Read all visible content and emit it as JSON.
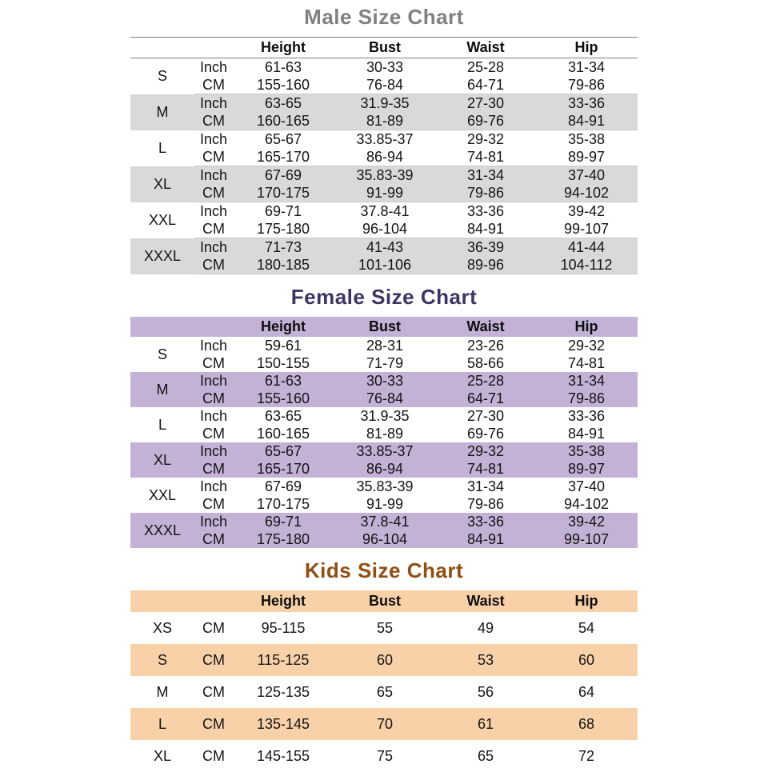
{
  "page": {
    "background": "#ffffff"
  },
  "charts": [
    {
      "title": "Male Size Chart",
      "title_color": "#808080",
      "band_color": "#d9d9d9",
      "header_shaded": false,
      "columns": [
        "Height",
        "Bust",
        "Waist",
        "Hip"
      ],
      "rows": [
        {
          "size": "S",
          "shaded": false,
          "measures": [
            {
              "unit": "Inch",
              "values": [
                "61-63",
                "30-33",
                "25-28",
                "31-34"
              ]
            },
            {
              "unit": "CM",
              "values": [
                "155-160",
                "76-84",
                "64-71",
                "79-86"
              ]
            }
          ]
        },
        {
          "size": "M",
          "shaded": true,
          "measures": [
            {
              "unit": "Inch",
              "values": [
                "63-65",
                "31.9-35",
                "27-30",
                "33-36"
              ]
            },
            {
              "unit": "CM",
              "values": [
                "160-165",
                "81-89",
                "69-76",
                "84-91"
              ]
            }
          ]
        },
        {
          "size": "L",
          "shaded": false,
          "measures": [
            {
              "unit": "Inch",
              "values": [
                "65-67",
                "33.85-37",
                "29-32",
                "35-38"
              ]
            },
            {
              "unit": "CM",
              "values": [
                "165-170",
                "86-94",
                "74-81",
                "89-97"
              ]
            }
          ]
        },
        {
          "size": "XL",
          "shaded": true,
          "measures": [
            {
              "unit": "Inch",
              "values": [
                "67-69",
                "35.83-39",
                "31-34",
                "37-40"
              ]
            },
            {
              "unit": "CM",
              "values": [
                "170-175",
                "91-99",
                "79-86",
                "94-102"
              ]
            }
          ]
        },
        {
          "size": "XXL",
          "shaded": false,
          "measures": [
            {
              "unit": "Inch",
              "values": [
                "69-71",
                "37.8-41",
                "33-36",
                "39-42"
              ]
            },
            {
              "unit": "CM",
              "values": [
                "175-180",
                "96-104",
                "84-91",
                "99-107"
              ]
            }
          ]
        },
        {
          "size": "XXXL",
          "shaded": true,
          "measures": [
            {
              "unit": "Inch",
              "values": [
                "71-73",
                "41-43",
                "36-39",
                "41-44"
              ]
            },
            {
              "unit": "CM",
              "values": [
                "180-185",
                "101-106",
                "89-96",
                "104-112"
              ]
            }
          ]
        }
      ]
    },
    {
      "title": "Female Size Chart",
      "title_color": "#3e3363",
      "band_color": "#c3b1d6",
      "header_shaded": true,
      "columns": [
        "Height",
        "Bust",
        "Waist",
        "Hip"
      ],
      "rows": [
        {
          "size": "S",
          "shaded": false,
          "measures": [
            {
              "unit": "Inch",
              "values": [
                "59-61",
                "28-31",
                "23-26",
                "29-32"
              ]
            },
            {
              "unit": "CM",
              "values": [
                "150-155",
                "71-79",
                "58-66",
                "74-81"
              ]
            }
          ]
        },
        {
          "size": "M",
          "shaded": true,
          "measures": [
            {
              "unit": "Inch",
              "values": [
                "61-63",
                "30-33",
                "25-28",
                "31-34"
              ]
            },
            {
              "unit": "CM",
              "values": [
                "155-160",
                "76-84",
                "64-71",
                "79-86"
              ]
            }
          ]
        },
        {
          "size": "L",
          "shaded": false,
          "measures": [
            {
              "unit": "Inch",
              "values": [
                "63-65",
                "31.9-35",
                "27-30",
                "33-36"
              ]
            },
            {
              "unit": "CM",
              "values": [
                "160-165",
                "81-89",
                "69-76",
                "84-91"
              ]
            }
          ]
        },
        {
          "size": "XL",
          "shaded": true,
          "measures": [
            {
              "unit": "Inch",
              "values": [
                "65-67",
                "33.85-37",
                "29-32",
                "35-38"
              ]
            },
            {
              "unit": "CM",
              "values": [
                "165-170",
                "86-94",
                "74-81",
                "89-97"
              ]
            }
          ]
        },
        {
          "size": "XXL",
          "shaded": false,
          "measures": [
            {
              "unit": "Inch",
              "values": [
                "67-69",
                "35.83-39",
                "31-34",
                "37-40"
              ]
            },
            {
              "unit": "CM",
              "values": [
                "170-175",
                "91-99",
                "79-86",
                "94-102"
              ]
            }
          ]
        },
        {
          "size": "XXXL",
          "shaded": true,
          "measures": [
            {
              "unit": "Inch",
              "values": [
                "69-71",
                "37.8-41",
                "33-36",
                "39-42"
              ]
            },
            {
              "unit": "CM",
              "values": [
                "175-180",
                "96-104",
                "84-91",
                "99-107"
              ]
            }
          ]
        }
      ]
    },
    {
      "title": "Kids Size Chart",
      "title_color": "#8f4e13",
      "band_color": "#f9d1a9",
      "header_shaded": true,
      "columns": [
        "Height",
        "Bust",
        "Waist",
        "Hip"
      ],
      "rows": [
        {
          "size": "XS",
          "shaded": false,
          "measures": [
            {
              "unit": "CM",
              "values": [
                "95-115",
                "55",
                "49",
                "54"
              ]
            }
          ]
        },
        {
          "size": "S",
          "shaded": true,
          "measures": [
            {
              "unit": "CM",
              "values": [
                "115-125",
                "60",
                "53",
                "60"
              ]
            }
          ]
        },
        {
          "size": "M",
          "shaded": false,
          "measures": [
            {
              "unit": "CM",
              "values": [
                "125-135",
                "65",
                "56",
                "64"
              ]
            }
          ]
        },
        {
          "size": "L",
          "shaded": true,
          "measures": [
            {
              "unit": "CM",
              "values": [
                "135-145",
                "70",
                "61",
                "68"
              ]
            }
          ]
        },
        {
          "size": "XL",
          "shaded": false,
          "measures": [
            {
              "unit": "CM",
              "values": [
                "145-155",
                "75",
                "65",
                "72"
              ]
            }
          ]
        }
      ]
    }
  ]
}
